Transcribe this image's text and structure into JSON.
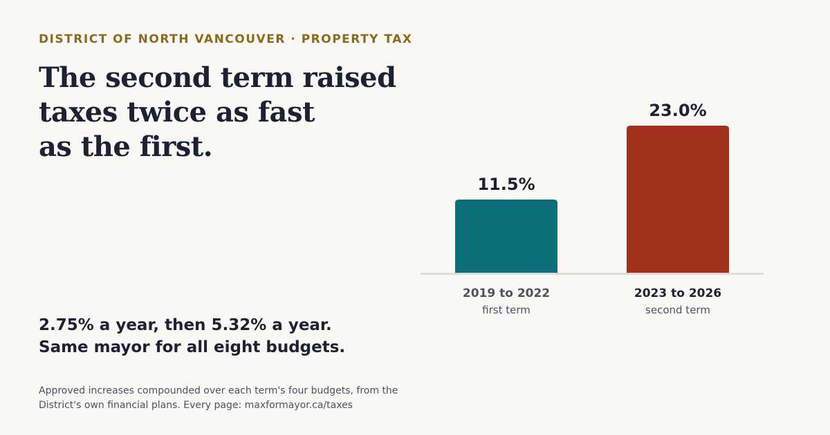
{
  "eyebrow": "DISTRICT OF NORTH VANCOUVER · PROPERTY TAX",
  "headline": [
    "The second term raised",
    "taxes twice as fast",
    "as the first."
  ],
  "takeaway": [
    "2.75% a year, then 5.32% a year.",
    "Same mayor for all eight budgets."
  ],
  "footnote": [
    "Approved increases compounded over each term's four budgets, from the",
    "District's own financial plans. Every page: maxformayor.ca/taxes"
  ],
  "colors": {
    "first_term": "#0b6e79",
    "second_term": "#a3321d",
    "first_term_label": "#4a5363",
    "second_term_label": "#1b2233",
    "baseline": "#dedcd6"
  },
  "chart_data": {
    "type": "bar",
    "categories": [
      "2019 to 2022",
      "2023 to 2026"
    ],
    "subcategories": [
      "first term",
      "second term"
    ],
    "values": [
      11.5,
      23.0
    ],
    "value_labels": [
      "11.5%",
      "23.0%"
    ],
    "unit": "%",
    "ylim": [
      0,
      23
    ],
    "grid": false,
    "legend": "none"
  }
}
